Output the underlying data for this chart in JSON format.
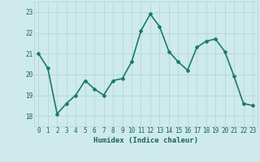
{
  "x": [
    0,
    1,
    2,
    3,
    4,
    5,
    6,
    7,
    8,
    9,
    10,
    11,
    12,
    13,
    14,
    15,
    16,
    17,
    18,
    19,
    20,
    21,
    22,
    23
  ],
  "y": [
    21.0,
    20.3,
    18.1,
    18.6,
    19.0,
    19.7,
    19.3,
    19.0,
    19.7,
    19.8,
    20.6,
    22.1,
    22.9,
    22.3,
    21.1,
    20.6,
    20.2,
    21.3,
    21.6,
    21.7,
    21.1,
    19.9,
    18.6,
    18.5
  ],
  "line_color": "#1a7a6e",
  "marker": "D",
  "marker_size": 2,
  "bg_color": "#ceeaea",
  "grid_color": "#b0d4d4",
  "xlabel": "Humidex (Indice chaleur)",
  "ylim": [
    17.5,
    23.5
  ],
  "xlim": [
    -0.5,
    23.5
  ],
  "yticks": [
    18,
    19,
    20,
    21,
    22,
    23
  ],
  "xticks": [
    0,
    1,
    2,
    3,
    4,
    5,
    6,
    7,
    8,
    9,
    10,
    11,
    12,
    13,
    14,
    15,
    16,
    17,
    18,
    19,
    20,
    21,
    22,
    23
  ],
  "font_color": "#1a6060",
  "linewidth": 1.2
}
